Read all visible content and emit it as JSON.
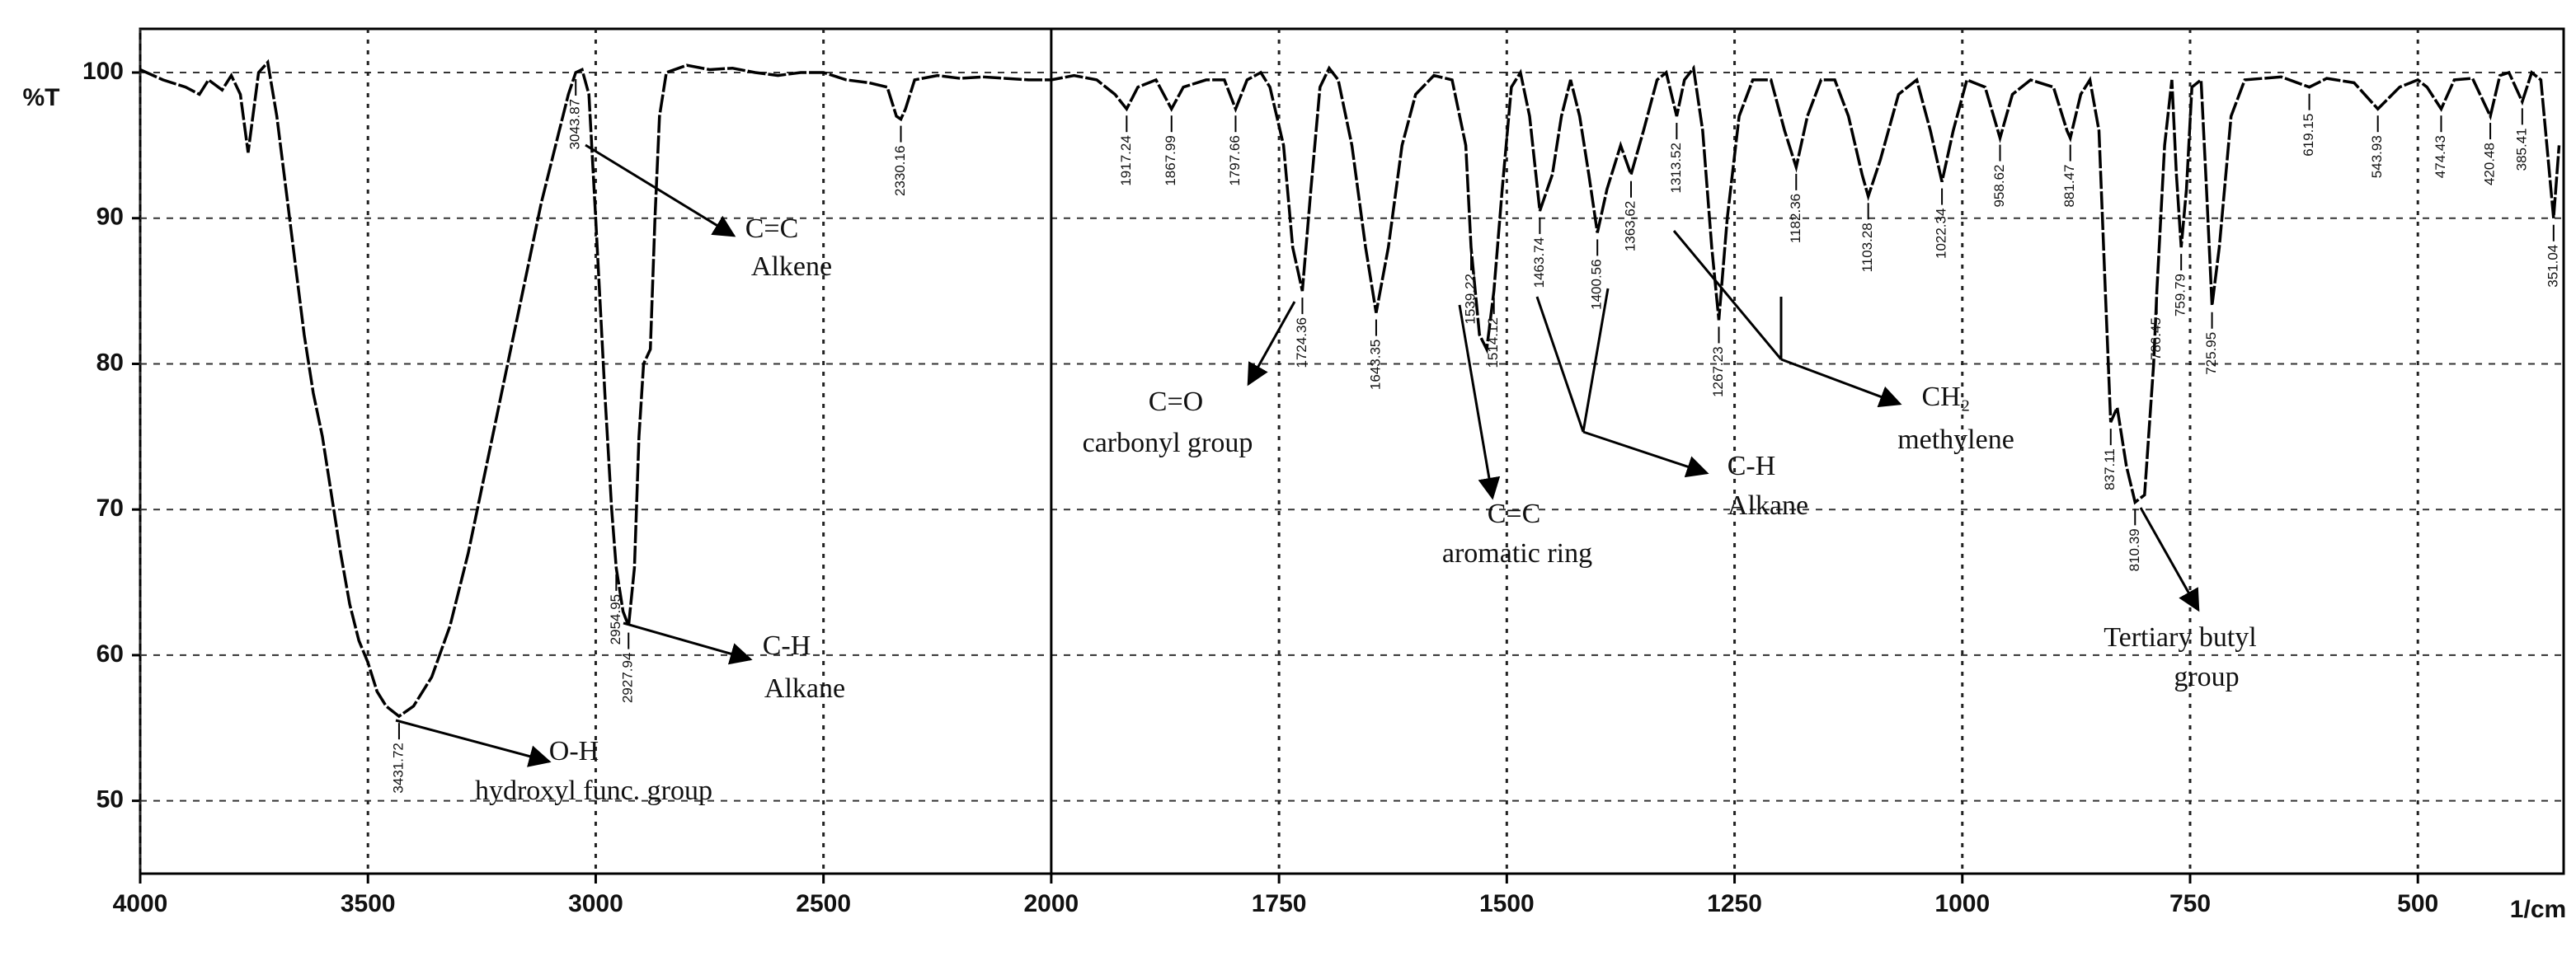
{
  "chart_data": {
    "type": "line",
    "ylabel": "%T",
    "xlabel": "1/cm",
    "color": "#000000",
    "xlim": [
      4000,
      340
    ],
    "ylim": [
      45,
      103
    ],
    "xticks": [
      4000,
      3500,
      3000,
      2500,
      2000,
      1750,
      1500,
      1250,
      1000,
      750,
      500
    ],
    "yticks": [
      50,
      60,
      70,
      80,
      90,
      100
    ],
    "grid": true,
    "scale_break": 2000,
    "x": [
      4000,
      3950,
      3900,
      3870,
      3850,
      3820,
      3800,
      3780,
      3763,
      3740,
      3720,
      3700,
      3680,
      3660,
      3640,
      3620,
      3600,
      3580,
      3560,
      3540,
      3520,
      3500,
      3480,
      3460,
      3431.72,
      3400,
      3360,
      3320,
      3280,
      3240,
      3200,
      3160,
      3120,
      3080,
      3060,
      3043.87,
      3030,
      3015,
      3000,
      2980,
      2965,
      2954.95,
      2940,
      2927.94,
      2915,
      2905,
      2895,
      2880,
      2870,
      2860,
      2845,
      2800,
      2750,
      2700,
      2650,
      2600,
      2550,
      2500,
      2450,
      2400,
      2360,
      2340,
      2330.16,
      2320,
      2300,
      2250,
      2200,
      2150,
      2100,
      2050,
      2000,
      1975,
      1950,
      1930,
      1917.24,
      1905,
      1885,
      1867.99,
      1855,
      1830,
      1810,
      1797.66,
      1785,
      1770,
      1760,
      1745,
      1735,
      1724.36,
      1715,
      1705,
      1695,
      1685,
      1670,
      1655,
      1643.35,
      1630,
      1615,
      1600,
      1580,
      1560,
      1545,
      1539.22,
      1530,
      1522,
      1514.12,
      1505,
      1495,
      1485,
      1475,
      1463.74,
      1450,
      1440,
      1430,
      1420,
      1410,
      1400.56,
      1390,
      1375,
      1363.62,
      1350,
      1335,
      1325,
      1313.52,
      1305,
      1295,
      1285,
      1275,
      1267.23,
      1258,
      1245,
      1230,
      1210,
      1195,
      1182.36,
      1170,
      1155,
      1140,
      1125,
      1110,
      1103.28,
      1090,
      1070,
      1050,
      1035,
      1022.34,
      1010,
      995,
      975,
      958.62,
      945,
      925,
      900,
      885,
      881.47,
      870,
      860,
      850,
      843,
      837.11,
      830,
      820,
      810.39,
      800,
      790,
      786.45,
      778,
      770,
      765,
      759.79,
      754,
      748,
      738,
      732,
      725.95,
      718,
      705,
      690,
      650,
      619.15,
      600,
      570,
      543.93,
      520,
      500,
      490,
      474.43,
      460,
      440,
      420.48,
      410,
      400,
      385.41,
      375,
      365,
      351.04,
      345
    ],
    "values": [
      100.2,
      99.5,
      99,
      98.5,
      99.5,
      98.8,
      99.8,
      98.5,
      94.5,
      100,
      100.7,
      97,
      92,
      87,
      82,
      78,
      75,
      71,
      67,
      63.5,
      61,
      59.5,
      57.5,
      56.5,
      55.8,
      56.5,
      58.5,
      62,
      67,
      73,
      79,
      85,
      91,
      96,
      98.5,
      100,
      100.2,
      98.5,
      90,
      78,
      70,
      66,
      63,
      62,
      66,
      75,
      80,
      81,
      90,
      97,
      100,
      100.5,
      100.2,
      100.3,
      100,
      99.8,
      100,
      100,
      99.5,
      99.3,
      99,
      97,
      96.8,
      97.5,
      99.5,
      99.8,
      99.6,
      99.7,
      99.6,
      99.5,
      99.5,
      99.8,
      99.5,
      98.5,
      97.5,
      99,
      99.5,
      97.5,
      99,
      99.5,
      99.5,
      97.5,
      99.5,
      100,
      99,
      95,
      88,
      85,
      92,
      99,
      100.3,
      99.5,
      95,
      88,
      83.5,
      88,
      95,
      98.5,
      99.8,
      99.5,
      95,
      88,
      82,
      81,
      85,
      92,
      99,
      100,
      97,
      90.5,
      93,
      97,
      99.5,
      97,
      93,
      89,
      92,
      95,
      93,
      96,
      99.5,
      100,
      97,
      99.5,
      100.3,
      96,
      88,
      83,
      90,
      97,
      99.5,
      99.5,
      96,
      93.5,
      97,
      99.5,
      99.5,
      97,
      93,
      91.5,
      94,
      98.5,
      99.5,
      96,
      92.5,
      96,
      99.5,
      99,
      95.5,
      98.5,
      99.5,
      99,
      96,
      95.5,
      98.5,
      99.5,
      96,
      85,
      76,
      77,
      73,
      70.5,
      71,
      80,
      85,
      95,
      99.5,
      93,
      88,
      92,
      99,
      99.5,
      92,
      84,
      88,
      97,
      99.5,
      99.7,
      99,
      99.6,
      99.3,
      97.5,
      99,
      99.5,
      99,
      97.5,
      99.5,
      99.6,
      97,
      99.8,
      100,
      98,
      100,
      99.5,
      90,
      95
    ],
    "peaks": [
      3431.72,
      3043.87,
      2954.95,
      2927.94,
      2330.16,
      1917.24,
      1867.99,
      1797.66,
      1724.36,
      1643.35,
      1539.22,
      1514.12,
      1463.74,
      1400.56,
      1363.62,
      1313.52,
      1267.23,
      1182.36,
      1103.28,
      1022.34,
      958.62,
      881.47,
      837.11,
      810.39,
      786.45,
      759.79,
      725.95,
      619.15,
      543.93,
      474.43,
      420.48,
      385.41,
      351.04
    ],
    "annotations": [
      {
        "lines": [
          "C=C",
          "Alkene"
        ]
      },
      {
        "lines": [
          "C-H",
          "Alkane"
        ]
      },
      {
        "lines": [
          "O-H",
          "hydroxyl func. group"
        ]
      },
      {
        "lines": [
          "C=O",
          "carbonyl group"
        ]
      },
      {
        "lines": [
          "C=C",
          "aromatic ring"
        ]
      },
      {
        "lines": [
          "C-H",
          "Alkane"
        ]
      },
      {
        "lines": [
          "CH₂",
          "methylene"
        ]
      },
      {
        "lines": [
          "Tertiary butyl",
          "group"
        ]
      }
    ]
  }
}
